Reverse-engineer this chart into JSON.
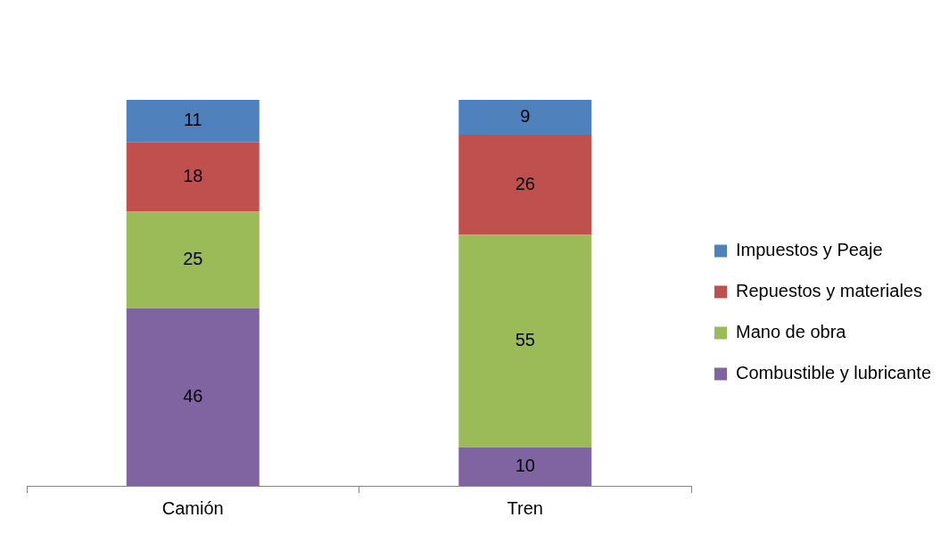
{
  "chart_data": {
    "type": "bar",
    "categories": [
      "Camión",
      "Tren"
    ],
    "stacked": true,
    "data_labels": true,
    "legend": "right",
    "series": [
      {
        "name": "Combustible y lubricante",
        "color": "#8064a2",
        "values": [
          46,
          10
        ]
      },
      {
        "name": "Mano de obra",
        "color": "#9bbb59",
        "values": [
          25,
          55
        ]
      },
      {
        "name": "Repuestos y materiales",
        "color": "#c0504d",
        "values": [
          18,
          26
        ]
      },
      {
        "name": "Impuestos y Peaje",
        "color": "#4f81bd",
        "values": [
          11,
          9
        ]
      }
    ]
  }
}
